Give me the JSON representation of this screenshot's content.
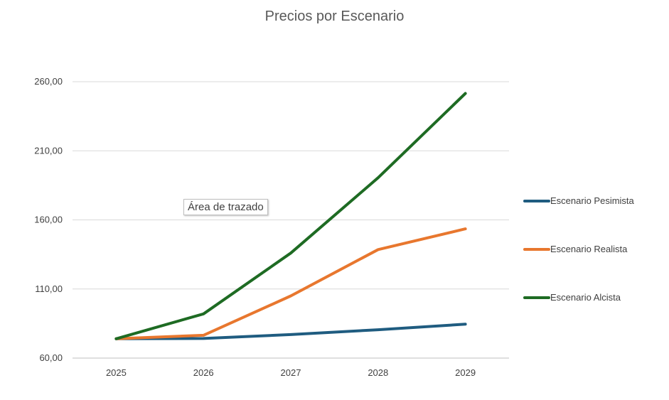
{
  "chart_data": {
    "type": "line",
    "title": "Precios por Escenario",
    "xlabel": "",
    "ylabel": "",
    "categories": [
      "2025",
      "2026",
      "2027",
      "2028",
      "2029"
    ],
    "ylim": [
      60,
      260
    ],
    "yticks": [
      60,
      110,
      160,
      210,
      260
    ],
    "ytick_labels": [
      "60,00",
      "110,00",
      "160,00",
      "210,00",
      "260,00"
    ],
    "grid": true,
    "legend_position": "right",
    "series": [
      {
        "name": "Escenario Pesimista",
        "color": "#1f5c80",
        "values": [
          74,
          74.2,
          77,
          80.5,
          84.5
        ]
      },
      {
        "name": "Escenario Realista",
        "color": "#e8772e",
        "values": [
          74,
          76.5,
          105,
          138.5,
          153.5
        ]
      },
      {
        "name": "Escenario Alcista",
        "color": "#1e6b23",
        "values": [
          74,
          92,
          136,
          190.5,
          251.5
        ]
      }
    ]
  },
  "tooltip": {
    "text": "Área de trazado"
  }
}
